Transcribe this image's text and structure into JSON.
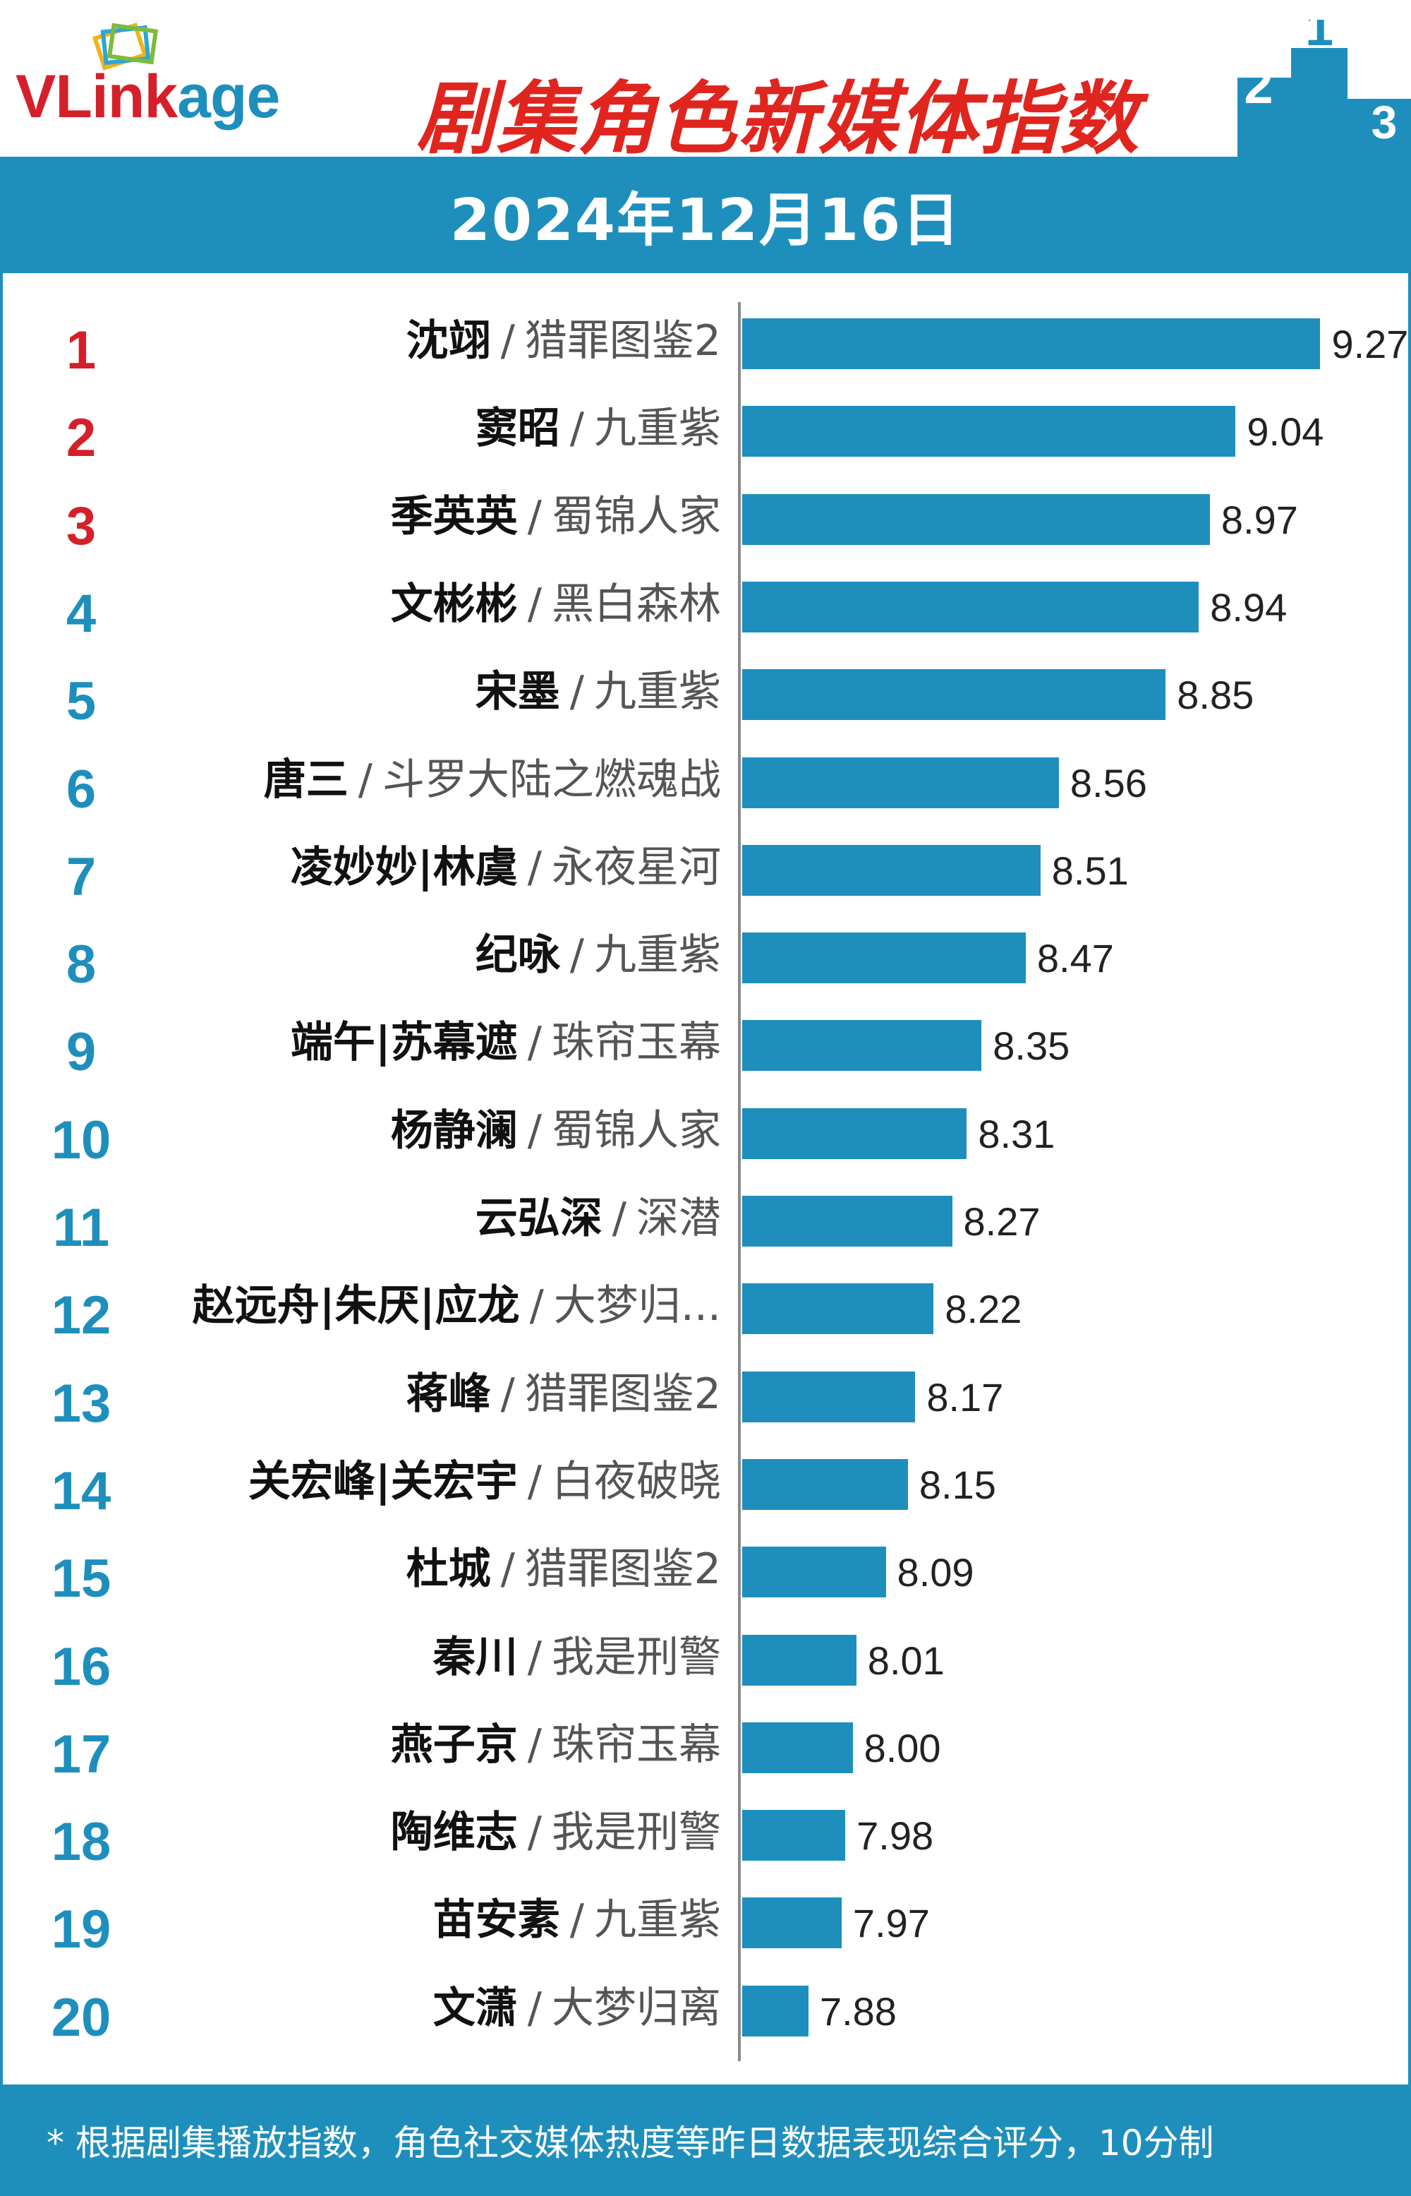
{
  "header": {
    "logo": {
      "v": "V",
      "link": "Link",
      "age": "age"
    },
    "title": "剧集角色新媒体指数",
    "podium": {
      "first": "1",
      "second": "2",
      "third": "3"
    }
  },
  "date": "2024年12月16日",
  "footer": {
    "note": "* 根据剧集播放指数，角色社交媒体热度等昨日数据表现综合评分，10分制"
  },
  "colors": {
    "bar": "#1e8fbd",
    "top_rank": "#d4202a",
    "rank": "#1e8fbd",
    "title": "#e0251f"
  },
  "chart_data": {
    "type": "bar",
    "orientation": "horizontal",
    "xlim": [
      7.7,
      9.4
    ],
    "categories": [
      "沈翊 / 猎罪图鉴2",
      "窦昭 / 九重紫",
      "季英英 / 蜀锦人家",
      "文彬彬 / 黑白森林",
      "宋墨 / 九重紫",
      "唐三 / 斗罗大陆之燃魂战",
      "凌妙妙|林虞 / 永夜星河",
      "纪咏 / 九重紫",
      "端午|苏幕遮 / 珠帘玉幕",
      "杨静澜 / 蜀锦人家",
      "云弘深 / 深潜",
      "赵远舟|朱厌|应龙 / 大梦归...",
      "蒋峰 / 猎罪图鉴2",
      "关宏峰|关宏宇 / 白夜破晓",
      "杜城 / 猎罪图鉴2",
      "秦川 / 我是刑警",
      "燕子京 / 珠帘玉幕",
      "陶维志 / 我是刑警",
      "苗安素 / 九重紫",
      "文潇 / 大梦归离"
    ],
    "values": [
      9.27,
      9.04,
      8.97,
      8.94,
      8.85,
      8.56,
      8.51,
      8.47,
      8.35,
      8.31,
      8.27,
      8.22,
      8.17,
      8.15,
      8.09,
      8.01,
      8.0,
      7.98,
      7.97,
      7.88
    ],
    "rows": [
      {
        "rank": "1",
        "character": "沈翊",
        "show": "猎罪图鉴2",
        "value": 9.27,
        "value_label": "9.27"
      },
      {
        "rank": "2",
        "character": "窦昭",
        "show": "九重紫",
        "value": 9.04,
        "value_label": "9.04"
      },
      {
        "rank": "3",
        "character": "季英英",
        "show": "蜀锦人家",
        "value": 8.97,
        "value_label": "8.97"
      },
      {
        "rank": "4",
        "character": "文彬彬",
        "show": "黑白森林",
        "value": 8.94,
        "value_label": "8.94"
      },
      {
        "rank": "5",
        "character": "宋墨",
        "show": "九重紫",
        "value": 8.85,
        "value_label": "8.85"
      },
      {
        "rank": "6",
        "character": "唐三",
        "show": "斗罗大陆之燃魂战",
        "value": 8.56,
        "value_label": "8.56"
      },
      {
        "rank": "7",
        "character": "凌妙妙|林虞",
        "show": "永夜星河",
        "value": 8.51,
        "value_label": "8.51"
      },
      {
        "rank": "8",
        "character": "纪咏",
        "show": "九重紫",
        "value": 8.47,
        "value_label": "8.47"
      },
      {
        "rank": "9",
        "character": "端午|苏幕遮",
        "show": "珠帘玉幕",
        "value": 8.35,
        "value_label": "8.35"
      },
      {
        "rank": "10",
        "character": "杨静澜",
        "show": "蜀锦人家",
        "value": 8.31,
        "value_label": "8.31"
      },
      {
        "rank": "11",
        "character": "云弘深",
        "show": "深潜",
        "value": 8.27,
        "value_label": "8.27"
      },
      {
        "rank": "12",
        "character": "赵远舟|朱厌|应龙",
        "show": "大梦归...",
        "value": 8.22,
        "value_label": "8.22"
      },
      {
        "rank": "13",
        "character": "蒋峰",
        "show": "猎罪图鉴2",
        "value": 8.17,
        "value_label": "8.17"
      },
      {
        "rank": "14",
        "character": "关宏峰|关宏宇",
        "show": "白夜破晓",
        "value": 8.15,
        "value_label": "8.15"
      },
      {
        "rank": "15",
        "character": "杜城",
        "show": "猎罪图鉴2",
        "value": 8.09,
        "value_label": "8.09"
      },
      {
        "rank": "16",
        "character": "秦川",
        "show": "我是刑警",
        "value": 8.01,
        "value_label": "8.01"
      },
      {
        "rank": "17",
        "character": "燕子京",
        "show": "珠帘玉幕",
        "value": 8.0,
        "value_label": "8.00"
      },
      {
        "rank": "18",
        "character": "陶维志",
        "show": "我是刑警",
        "value": 7.98,
        "value_label": "7.98"
      },
      {
        "rank": "19",
        "character": "苗安素",
        "show": "九重紫",
        "value": 7.97,
        "value_label": "7.97"
      },
      {
        "rank": "20",
        "character": "文潇",
        "show": "大梦归离",
        "value": 7.88,
        "value_label": "7.88"
      }
    ],
    "separator": "/",
    "grid": false,
    "legend": "none"
  }
}
